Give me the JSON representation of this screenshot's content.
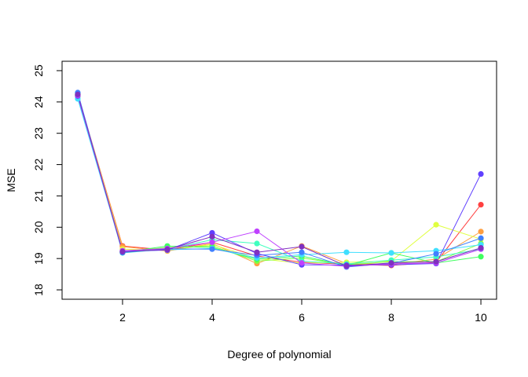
{
  "chart_data": {
    "type": "line",
    "title": "",
    "xlabel": "Degree of polynomial",
    "ylabel": "MSE",
    "x": [
      1,
      2,
      3,
      4,
      5,
      6,
      7,
      8,
      9,
      10
    ],
    "xlim": [
      0.65,
      10.35
    ],
    "ylim": [
      17.7,
      25.3
    ],
    "xticks": [
      2,
      4,
      6,
      8,
      10
    ],
    "yticks": [
      18,
      19,
      20,
      21,
      22,
      23,
      24,
      25
    ],
    "grid": false,
    "legend": "none",
    "series": [
      {
        "color": "#FF4040",
        "values": [
          24.22,
          19.4,
          19.27,
          19.52,
          19.08,
          18.88,
          18.82,
          18.78,
          18.88,
          20.72
        ]
      },
      {
        "color": "#FF9F40",
        "values": [
          24.25,
          19.38,
          19.24,
          19.48,
          18.84,
          19.4,
          18.84,
          18.82,
          18.98,
          19.86
        ]
      },
      {
        "color": "#E0FF40",
        "values": [
          24.2,
          19.3,
          19.26,
          19.45,
          19.0,
          18.85,
          18.88,
          18.92,
          20.08,
          19.62
        ]
      },
      {
        "color": "#80FF40",
        "values": [
          24.18,
          19.22,
          19.35,
          19.4,
          18.92,
          19.02,
          18.8,
          18.9,
          18.9,
          19.48
        ]
      },
      {
        "color": "#40FF60",
        "values": [
          24.23,
          19.2,
          19.4,
          19.35,
          18.98,
          19.08,
          18.78,
          19.18,
          18.86,
          19.06
        ]
      },
      {
        "color": "#40FFBF",
        "values": [
          24.28,
          19.18,
          19.3,
          19.6,
          19.48,
          18.92,
          18.83,
          18.95,
          19.05,
          19.3
        ]
      },
      {
        "color": "#40DFFF",
        "values": [
          24.1,
          19.21,
          19.28,
          19.32,
          19.02,
          19.12,
          19.2,
          19.18,
          19.25,
          19.44
        ]
      },
      {
        "color": "#4080FF",
        "values": [
          24.3,
          19.19,
          19.31,
          19.3,
          19.1,
          19.2,
          18.73,
          18.85,
          19.15,
          19.65
        ]
      },
      {
        "color": "#6040FF",
        "values": [
          24.19,
          19.23,
          19.27,
          19.82,
          19.16,
          18.8,
          18.79,
          18.8,
          18.84,
          21.7
        ]
      },
      {
        "color": "#BF40FF",
        "values": [
          24.21,
          19.25,
          19.32,
          19.52,
          19.87,
          18.86,
          18.75,
          18.83,
          18.86,
          19.3
        ]
      },
      {
        "color": "#8030C0",
        "values": [
          24.24,
          19.22,
          19.29,
          19.7,
          19.2,
          19.38,
          18.76,
          18.86,
          18.9,
          19.34
        ]
      }
    ]
  }
}
